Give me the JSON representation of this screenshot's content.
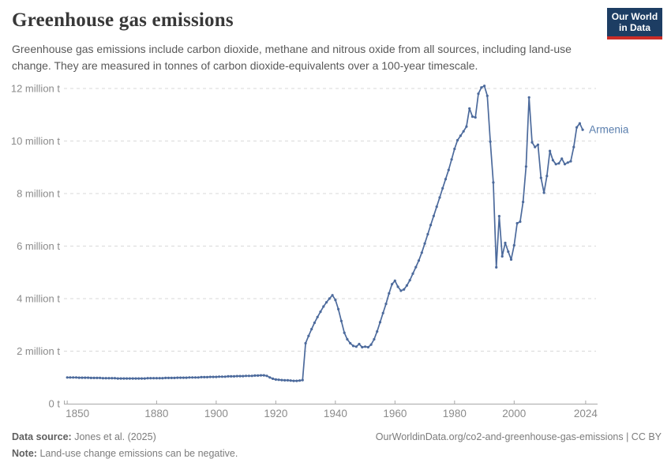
{
  "header": {
    "title": "Greenhouse gas emissions",
    "subtitle": "Greenhouse gas emissions include carbon dioxide, methane and nitrous oxide from all sources, including land-use change. They are measured in tonnes of carbon dioxide-equivalents over a 100-year timescale."
  },
  "logo": {
    "line1": "Our World",
    "line2": "in Data"
  },
  "colors": {
    "line": "#4c6a9c",
    "entity_label": "#5b7fae",
    "grid": "#d9d9d9",
    "axis": "#a8a8a8",
    "tick_text": "#8b8b8b",
    "logo_bg": "#1d3d63",
    "logo_stripe": "#cb2d27"
  },
  "chart_data": {
    "type": "line",
    "title": "Greenhouse gas emissions",
    "grid": "horizontal-dashed",
    "legend_position": "end-of-line-label",
    "xlim": [
      1848.9,
      2028
    ],
    "ylim": [
      0,
      12.4
    ],
    "x_ticks": [
      1850,
      1880,
      1900,
      1920,
      1940,
      1960,
      1980,
      2000,
      2024
    ],
    "y_ticks": [
      0,
      2,
      4,
      6,
      8,
      10,
      12
    ],
    "y_tick_labels": [
      "0 t",
      "2 million t",
      "4 million t",
      "6 million t",
      "8 million t",
      "10 million t",
      "12 million t"
    ],
    "series": [
      {
        "name": "Armenia",
        "start_year": 1850,
        "end_year": 2023,
        "unit": "tonnes CO2-eq",
        "values": [
          1.0,
          1.0,
          1.0,
          1.0,
          0.99,
          0.99,
          0.99,
          0.99,
          0.98,
          0.98,
          0.98,
          0.98,
          0.97,
          0.97,
          0.97,
          0.97,
          0.97,
          0.96,
          0.96,
          0.96,
          0.96,
          0.96,
          0.96,
          0.96,
          0.96,
          0.96,
          0.96,
          0.97,
          0.97,
          0.97,
          0.97,
          0.97,
          0.97,
          0.98,
          0.98,
          0.98,
          0.98,
          0.99,
          0.99,
          0.99,
          0.99,
          1.0,
          1.0,
          1.0,
          1.0,
          1.01,
          1.01,
          1.01,
          1.02,
          1.02,
          1.02,
          1.03,
          1.03,
          1.03,
          1.04,
          1.04,
          1.04,
          1.05,
          1.05,
          1.05,
          1.06,
          1.06,
          1.06,
          1.07,
          1.07,
          1.08,
          1.08,
          1.06,
          1.0,
          0.95,
          0.92,
          0.91,
          0.9,
          0.89,
          0.89,
          0.88,
          0.87,
          0.87,
          0.88,
          0.9,
          2.3,
          2.58,
          2.84,
          3.08,
          3.3,
          3.5,
          3.7,
          3.86,
          4.0,
          4.13,
          3.95,
          3.6,
          3.15,
          2.7,
          2.45,
          2.3,
          2.2,
          2.17,
          2.27,
          2.15,
          2.17,
          2.15,
          2.25,
          2.45,
          2.75,
          3.1,
          3.45,
          3.8,
          4.2,
          4.55,
          4.68,
          4.45,
          4.3,
          4.35,
          4.5,
          4.7,
          4.95,
          5.2,
          5.45,
          5.75,
          6.1,
          6.45,
          6.8,
          7.15,
          7.5,
          7.85,
          8.2,
          8.55,
          8.9,
          9.3,
          9.7,
          10.03,
          10.2,
          10.37,
          10.55,
          11.24,
          10.93,
          10.9,
          11.8,
          12.04,
          12.1,
          11.72,
          9.98,
          8.42,
          5.19,
          7.14,
          5.61,
          6.12,
          5.79,
          5.49,
          6.03,
          6.87,
          6.93,
          7.68,
          9.03,
          11.66,
          9.95,
          9.77,
          9.86,
          8.6,
          8.03,
          8.67,
          9.62,
          9.27,
          9.12,
          9.15,
          9.33,
          9.12,
          9.18,
          9.23,
          9.77,
          10.52,
          10.67,
          10.43
        ]
      }
    ]
  },
  "footer": {
    "datasource_label": "Data source:",
    "datasource": "Jones et al. (2025)",
    "url": "OurWorldinData.org/co2-and-greenhouse-gas-emissions | CC BY",
    "note_label": "Note:",
    "note": "Land-use change emissions can be negative."
  }
}
